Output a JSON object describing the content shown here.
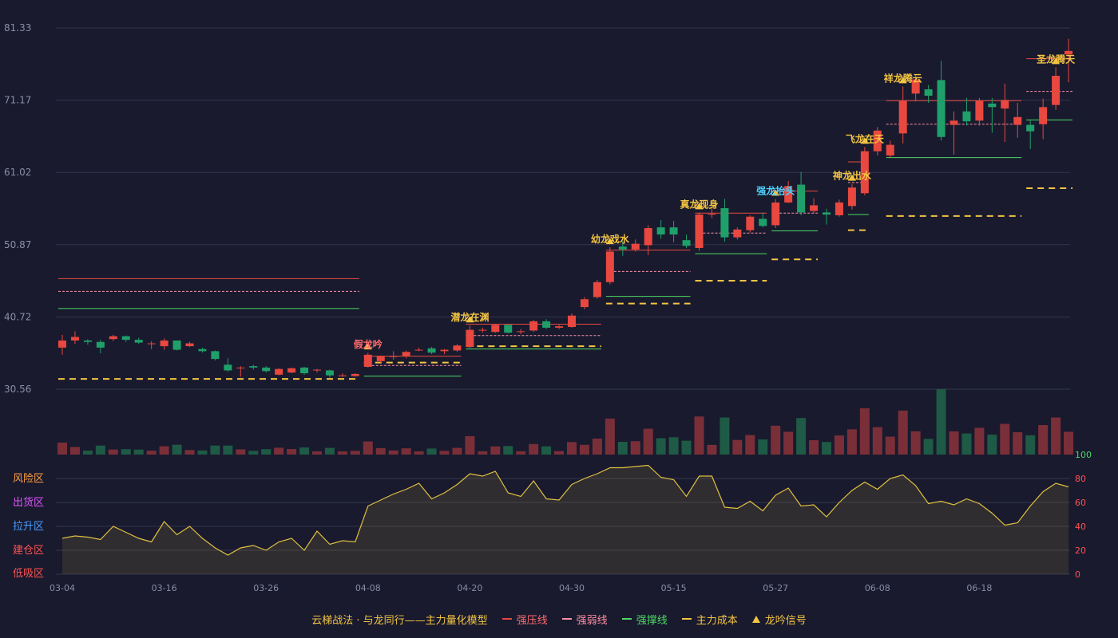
{
  "chart_data": {
    "type": "candlestick",
    "ylim": [
      30.56,
      81.33
    ],
    "y_ticks": [
      "81.33",
      "71.17",
      "61.02",
      "50.87",
      "40.72",
      "30.56"
    ],
    "x_ticks": [
      "03-04",
      "03-16",
      "03-26",
      "04-08",
      "04-20",
      "04-30",
      "05-15",
      "05-27",
      "06-08",
      "06-18"
    ],
    "candles": [
      [
        36.4,
        37.4,
        35.4,
        38.2
      ],
      [
        37.4,
        37.9,
        36.9,
        38.7
      ],
      [
        37.4,
        37.2,
        36.8,
        37.6
      ],
      [
        37.2,
        36.4,
        35.6,
        37.5
      ],
      [
        37.6,
        38.0,
        37.3,
        38.2
      ],
      [
        38.0,
        37.5,
        37.2,
        38.1
      ],
      [
        37.5,
        37.1,
        36.9,
        37.8
      ],
      [
        37.0,
        37.0,
        36.2,
        37.3
      ],
      [
        36.6,
        37.4,
        36.1,
        37.7
      ],
      [
        37.4,
        36.1,
        36.0,
        37.4
      ],
      [
        36.6,
        37.0,
        36.5,
        37.2
      ],
      [
        36.2,
        35.9,
        35.7,
        36.4
      ],
      [
        35.9,
        34.8,
        34.6,
        36.0
      ],
      [
        34.0,
        33.2,
        33.0,
        34.9
      ],
      [
        33.5,
        33.6,
        32.3,
        33.8
      ],
      [
        33.8,
        33.6,
        33.3,
        34.0
      ],
      [
        33.6,
        33.1,
        32.9,
        33.8
      ],
      [
        32.6,
        33.4,
        32.5,
        33.5
      ],
      [
        32.9,
        33.5,
        32.8,
        33.6
      ],
      [
        33.6,
        32.8,
        32.6,
        33.7
      ],
      [
        33.2,
        33.3,
        32.9,
        33.4
      ],
      [
        33.2,
        32.5,
        32.2,
        33.3
      ],
      [
        32.5,
        32.5,
        32.3,
        32.8
      ],
      [
        32.4,
        32.7,
        32.3,
        32.8
      ],
      [
        33.7,
        35.4,
        33.6,
        35.7
      ],
      [
        34.5,
        35.2,
        34.3,
        35.3
      ],
      [
        35.2,
        35.2,
        34.7,
        35.9
      ],
      [
        35.2,
        35.8,
        34.9,
        36.0
      ],
      [
        36.1,
        36.1,
        35.9,
        36.4
      ],
      [
        36.3,
        35.7,
        35.5,
        36.5
      ],
      [
        35.9,
        36.1,
        35.5,
        36.2
      ],
      [
        36.0,
        36.7,
        35.8,
        36.9
      ],
      [
        36.5,
        38.9,
        36.4,
        39.5
      ],
      [
        38.8,
        38.9,
        38.5,
        39.2
      ],
      [
        38.6,
        39.6,
        38.5,
        39.7
      ],
      [
        39.6,
        38.5,
        38.4,
        39.6
      ],
      [
        38.6,
        38.7,
        38.3,
        39.0
      ],
      [
        38.8,
        40.1,
        38.6,
        40.3
      ],
      [
        40.1,
        39.2,
        39.0,
        40.4
      ],
      [
        39.2,
        39.4,
        39.0,
        39.6
      ],
      [
        39.3,
        40.9,
        39.2,
        41.2
      ],
      [
        42.1,
        43.2,
        41.8,
        43.5
      ],
      [
        43.5,
        45.6,
        43.3,
        45.9
      ],
      [
        45.6,
        49.9,
        45.3,
        50.5
      ],
      [
        50.6,
        50.2,
        49.3,
        51.4
      ],
      [
        50.2,
        51.0,
        49.9,
        51.6
      ],
      [
        50.8,
        53.2,
        49.4,
        53.6
      ],
      [
        53.3,
        52.3,
        51.7,
        54.3
      ],
      [
        53.3,
        52.3,
        51.2,
        54.2
      ],
      [
        51.5,
        50.7,
        50.4,
        52.3
      ],
      [
        50.4,
        55.1,
        50.0,
        55.4
      ],
      [
        55.2,
        55.2,
        54.6,
        56.1
      ],
      [
        56.0,
        51.9,
        51.3,
        57.3
      ],
      [
        51.9,
        53.0,
        51.6,
        53.3
      ],
      [
        52.9,
        54.8,
        52.6,
        55.0
      ],
      [
        54.5,
        53.5,
        53.3,
        55.4
      ],
      [
        53.6,
        56.8,
        53.2,
        57.3
      ],
      [
        56.8,
        59.1,
        56.7,
        59.8
      ],
      [
        59.3,
        55.4,
        55.0,
        61.1
      ],
      [
        55.6,
        56.4,
        55.3,
        57.4
      ],
      [
        55.4,
        55.1,
        53.7,
        55.9
      ],
      [
        55.0,
        56.8,
        54.8,
        57.2
      ],
      [
        56.3,
        58.9,
        55.8,
        59.4
      ],
      [
        58.1,
        64.0,
        57.8,
        64.6
      ],
      [
        64.0,
        66.9,
        63.4,
        67.4
      ],
      [
        63.4,
        64.9,
        63.1,
        65.5
      ],
      [
        66.5,
        71.1,
        65.1,
        73.1
      ],
      [
        72.1,
        74.1,
        71.0,
        74.8
      ],
      [
        72.7,
        71.8,
        70.8,
        73.3
      ],
      [
        74.0,
        66.0,
        65.5,
        76.7
      ],
      [
        67.7,
        68.3,
        63.5,
        69.6
      ],
      [
        69.6,
        68.2,
        67.6,
        71.5
      ],
      [
        68.3,
        71.1,
        67.6,
        71.5
      ],
      [
        70.7,
        70.2,
        66.6,
        71.5
      ],
      [
        70.0,
        71.2,
        65.3,
        73.5
      ],
      [
        67.7,
        68.8,
        65.9,
        70.8
      ],
      [
        67.7,
        66.8,
        64.3,
        68.3
      ],
      [
        67.8,
        70.2,
        65.7,
        71.4
      ],
      [
        70.5,
        74.6,
        69.8,
        75.8
      ],
      [
        77.6,
        78.1,
        73.7,
        79.8
      ]
    ],
    "volume_colors": "follows candle direction",
    "strength_index": [
      30,
      32,
      31,
      29,
      40,
      35,
      30,
      27,
      44,
      33,
      40,
      30,
      22,
      16,
      22,
      24,
      20,
      27,
      30,
      20,
      36,
      25,
      28,
      27,
      57,
      62,
      67,
      71,
      76,
      63,
      68,
      75,
      84,
      82,
      86,
      68,
      65,
      78,
      63,
      62,
      75,
      80,
      84,
      89,
      89,
      90,
      91,
      81,
      79,
      65,
      82,
      82,
      56,
      55,
      61,
      53,
      66,
      72,
      57,
      58,
      48,
      60,
      70,
      77,
      71,
      80,
      83,
      74,
      59,
      61,
      58,
      63,
      59,
      51,
      41,
      43,
      57,
      69,
      76,
      73
    ],
    "lines": [
      {
        "series": "强压线",
        "style": "solid",
        "y": 46.1,
        "from": 0,
        "to": 23
      },
      {
        "series": "强弱线",
        "style": "dotted",
        "y": 44.3,
        "from": 0,
        "to": 23
      },
      {
        "series": "强撑线",
        "style": "solid",
        "y": 41.9,
        "from": 0,
        "to": 23
      },
      {
        "series": "主力成本",
        "style": "dashed",
        "y": 32.0,
        "from": 0,
        "to": 23
      },
      {
        "series": "强压线",
        "style": "solid",
        "y": 35.2,
        "from": 24,
        "to": 31
      },
      {
        "series": "强弱线",
        "style": "dotted",
        "y": 33.9,
        "from": 24,
        "to": 31
      },
      {
        "series": "强撑线",
        "style": "solid",
        "y": 32.4,
        "from": 24,
        "to": 31
      },
      {
        "series": "主力成本",
        "style": "dashed",
        "y": 34.3,
        "from": 24,
        "to": 31
      },
      {
        "series": "强压线",
        "style": "solid",
        "y": 39.7,
        "from": 32,
        "to": 42
      },
      {
        "series": "强弱线",
        "style": "dotted",
        "y": 38.1,
        "from": 32,
        "to": 42
      },
      {
        "series": "强撑线",
        "style": "solid",
        "y": 36.2,
        "from": 32,
        "to": 42
      },
      {
        "series": "主力成本",
        "style": "dashed",
        "y": 36.6,
        "from": 32,
        "to": 42
      },
      {
        "series": "强压线",
        "style": "solid",
        "y": 50.1,
        "from": 43,
        "to": 49
      },
      {
        "series": "强弱线",
        "style": "dotted",
        "y": 47.1,
        "from": 43,
        "to": 49
      },
      {
        "series": "强撑线",
        "style": "solid",
        "y": 43.6,
        "from": 43,
        "to": 49
      },
      {
        "series": "主力成本",
        "style": "dashed",
        "y": 42.6,
        "from": 43,
        "to": 49
      },
      {
        "series": "强压线",
        "style": "solid",
        "y": 55.3,
        "from": 50,
        "to": 55
      },
      {
        "series": "强弱线",
        "style": "dotted",
        "y": 52.5,
        "from": 50,
        "to": 55
      },
      {
        "series": "强撑线",
        "style": "solid",
        "y": 49.6,
        "from": 50,
        "to": 55
      },
      {
        "series": "主力成本",
        "style": "dashed",
        "y": 45.8,
        "from": 50,
        "to": 55
      },
      {
        "series": "强压线",
        "style": "solid",
        "y": 58.4,
        "from": 56,
        "to": 59
      },
      {
        "series": "强弱线",
        "style": "dotted",
        "y": 55.3,
        "from": 56,
        "to": 59
      },
      {
        "series": "强撑线",
        "style": "solid",
        "y": 52.8,
        "from": 56,
        "to": 59
      },
      {
        "series": "主力成本",
        "style": "dashed",
        "y": 48.8,
        "from": 56,
        "to": 59
      },
      {
        "series": "强压线",
        "style": "solid",
        "y": 62.5,
        "from": 62,
        "to": 63
      },
      {
        "series": "强弱线",
        "style": "dotted",
        "y": 59.6,
        "from": 62,
        "to": 63
      },
      {
        "series": "强撑线",
        "style": "solid",
        "y": 55.1,
        "from": 62,
        "to": 63
      },
      {
        "series": "主力成本",
        "style": "dashed",
        "y": 52.9,
        "from": 62,
        "to": 63
      },
      {
        "series": "强压线",
        "style": "solid",
        "y": 71.1,
        "from": 65,
        "to": 75
      },
      {
        "series": "强弱线",
        "style": "dotted",
        "y": 67.8,
        "from": 65,
        "to": 75
      },
      {
        "series": "强撑线",
        "style": "solid",
        "y": 63.1,
        "from": 65,
        "to": 75
      },
      {
        "series": "主力成本",
        "style": "dashed",
        "y": 54.9,
        "from": 65,
        "to": 75
      },
      {
        "series": "强压线",
        "style": "solid",
        "y": 77.0,
        "from": 76,
        "to": 79
      },
      {
        "series": "强弱线",
        "style": "dotted",
        "y": 72.4,
        "from": 76,
        "to": 79
      },
      {
        "series": "强撑线",
        "style": "solid",
        "y": 68.4,
        "from": 76,
        "to": 79
      },
      {
        "series": "主力成本",
        "style": "dashed",
        "y": 58.8,
        "from": 76,
        "to": 79
      }
    ],
    "signals": [
      {
        "label": "假龙吟",
        "index": 24,
        "color": "#ff6b6b"
      },
      {
        "label": "潜龙在渊",
        "index": 32,
        "color": "#f4c542"
      },
      {
        "label": "幼龙戏水",
        "index": 43,
        "color": "#f4c542"
      },
      {
        "label": "真龙现身",
        "index": 50,
        "color": "#f4c542"
      },
      {
        "label": "强龙抬头",
        "index": 56,
        "color": "#4dd2ff"
      },
      {
        "label": "神龙出水",
        "index": 62,
        "color": "#f4c542"
      },
      {
        "label": "飞龙在天",
        "index": 63,
        "color": "#f4c542"
      },
      {
        "label": "祥龙腾云",
        "index": 66,
        "color": "#f4c542"
      },
      {
        "label": "圣龙腾天",
        "index": 78,
        "color": "#f4c542"
      }
    ],
    "zones": [
      {
        "label": "风险区",
        "color": "#ff9f43"
      },
      {
        "label": "出货区",
        "color": "#e056fd"
      },
      {
        "label": "拉升区",
        "color": "#4a9eff"
      },
      {
        "label": "建仓区",
        "color": "#ff5252"
      },
      {
        "label": "低吸区",
        "color": "#ff5252"
      }
    ],
    "index_ticks": [
      "100",
      "80",
      "60",
      "40",
      "20",
      "0"
    ],
    "colors": {
      "up": "#e8483f",
      "down": "#1fa06a",
      "press": "#e8483f",
      "weak": "#ff8fa3",
      "support": "#4cd964",
      "cost": "#f4c542",
      "index": "#e0c040"
    }
  },
  "legend": {
    "title": "云梯战法 · 与龙同行——主力量化模型",
    "items": [
      "强压线",
      "强弱线",
      "强撑线",
      "主力成本",
      "龙吟信号"
    ]
  }
}
